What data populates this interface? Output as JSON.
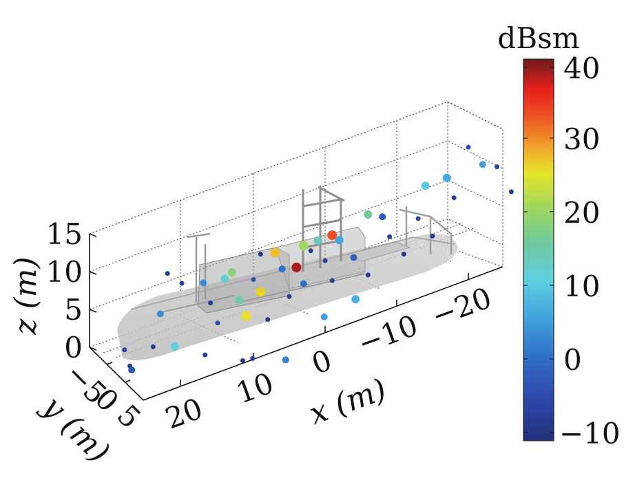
{
  "chart_data": {
    "type": "scatter",
    "title": "",
    "xlabel": "x (m)",
    "ylabel": "y (m)",
    "zlabel": "z (m)",
    "x_ticks": [
      "20",
      "10",
      "0",
      "−10",
      "−20"
    ],
    "y_ticks": [
      "−5",
      "0",
      "5"
    ],
    "z_ticks": [
      "15",
      "10",
      "5",
      "0"
    ],
    "xlim": [
      -28,
      28
    ],
    "ylim": [
      -6,
      6
    ],
    "zlim": [
      -2,
      17
    ],
    "grid": true,
    "colorbar": {
      "label": "dBsm",
      "ticks": [
        "40",
        "30",
        "20",
        "10",
        "0",
        "−10"
      ],
      "range": [
        -12,
        42
      ],
      "colormap": "jet"
    },
    "points": [
      {
        "x": 4,
        "y": 0,
        "z": 9.5,
        "c": 40
      },
      {
        "x": -1,
        "y": 0,
        "z": 12,
        "c": 34
      },
      {
        "x": 7,
        "y": 0,
        "z": 12.5,
        "c": 28
      },
      {
        "x": 9,
        "y": 0,
        "z": 8,
        "c": 27
      },
      {
        "x": 11,
        "y": 0,
        "z": 5.5,
        "c": 26
      },
      {
        "x": 3,
        "y": 0,
        "z": 12,
        "c": 21
      },
      {
        "x": 13,
        "y": 0,
        "z": 12,
        "c": 19
      },
      {
        "x": -6,
        "y": 0,
        "z": 13,
        "c": 16
      },
      {
        "x": 12,
        "y": 0,
        "z": 8,
        "c": 15
      },
      {
        "x": 1,
        "y": 0,
        "z": 12,
        "c": 14
      },
      {
        "x": 14,
        "y": 0,
        "z": 11.5,
        "c": 12
      },
      {
        "x": 21,
        "y": 0,
        "z": 5,
        "c": 11
      },
      {
        "x": -14,
        "y": 0,
        "z": 14,
        "c": 10
      },
      {
        "x": -3,
        "y": 2,
        "z": 4,
        "c": 7
      },
      {
        "x": -17,
        "y": 0,
        "z": 14,
        "c": 6
      },
      {
        "x": -2,
        "y": 0,
        "z": 11,
        "c": 6
      },
      {
        "x": 2,
        "y": 3,
        "z": 4,
        "c": 5
      },
      {
        "x": -22,
        "y": 0,
        "z": 14,
        "c": 5
      },
      {
        "x": 23,
        "y": 0,
        "z": 10,
        "c": 3
      },
      {
        "x": 17,
        "y": 0,
        "z": 12,
        "c": 3
      },
      {
        "x": 8,
        "y": 4,
        "z": 1,
        "c": 2
      },
      {
        "x": 6,
        "y": 0,
        "z": 10,
        "c": 0
      },
      {
        "x": 3,
        "y": 0,
        "z": 7,
        "c": 0
      },
      {
        "x": -4,
        "y": 0,
        "z": 8,
        "c": -2
      },
      {
        "x": -8,
        "y": 0,
        "z": 12,
        "c": -3
      },
      {
        "x": 27,
        "y": 0,
        "z": 4,
        "c": -4
      },
      {
        "x": 10,
        "y": 0,
        "z": 10,
        "c": -5
      },
      {
        "x": 15,
        "y": 0,
        "z": 6,
        "c": -6
      },
      {
        "x": -13,
        "y": 0,
        "z": 10,
        "c": -6
      },
      {
        "x": -20,
        "y": 0,
        "z": 17,
        "c": -6
      },
      {
        "x": -24,
        "y": 0,
        "z": 13,
        "c": -7
      },
      {
        "x": 28,
        "y": 0,
        "z": 7,
        "c": -7
      },
      {
        "x": 18,
        "y": 2,
        "z": 4,
        "c": -7
      },
      {
        "x": 0,
        "y": 0,
        "z": 9,
        "c": -8
      },
      {
        "x": 5,
        "y": 0,
        "z": 6,
        "c": -8
      },
      {
        "x": -9,
        "y": 0,
        "z": 9,
        "c": -8
      },
      {
        "x": 12,
        "y": 3,
        "z": 2,
        "c": -8
      },
      {
        "x": 20,
        "y": 0,
        "z": 13,
        "c": -8
      },
      {
        "x": -18,
        "y": 0,
        "z": 11,
        "c": -9
      },
      {
        "x": -26,
        "y": 0,
        "z": 9,
        "c": -9
      },
      {
        "x": 24,
        "y": 0,
        "z": 6,
        "c": -9
      },
      {
        "x": 8,
        "y": 0,
        "z": 4,
        "c": -9
      },
      {
        "x": -1,
        "y": 0,
        "z": 6,
        "c": -9
      },
      {
        "x": -6,
        "y": 0,
        "z": 5,
        "c": -9
      },
      {
        "x": 16,
        "y": 0,
        "z": 9,
        "c": -9
      },
      {
        "x": 26,
        "y": -2,
        "z": 3,
        "c": -10
      },
      {
        "x": 2,
        "y": 0,
        "z": 11,
        "c": -10
      },
      {
        "x": -11,
        "y": 0,
        "z": 6,
        "c": -10
      },
      {
        "x": 14,
        "y": 4,
        "z": 3,
        "c": -10
      },
      {
        "x": 22,
        "y": 0,
        "z": 15,
        "c": -10
      },
      {
        "x": -15,
        "y": 0,
        "z": 7,
        "c": -10
      },
      {
        "x": 9,
        "y": 0,
        "z": 13,
        "c": -10
      }
    ]
  }
}
